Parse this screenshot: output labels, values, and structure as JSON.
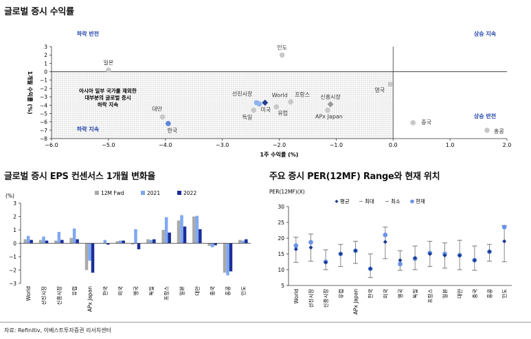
{
  "titles": {
    "scatter": "글로벌 증시 수익률",
    "eps": "글로벌 증시 EPS 컨센서스 1개월 변화율",
    "per": "주요 증시 PER(12MF) Range와 현재 위치"
  },
  "source": "자료: Refinitiv, 이베스트투자증권 리서치센터",
  "chart_data": [
    {
      "type": "scatter",
      "title": "글로벌 증시 수익률",
      "xlabel": "1주 수익률 (%)",
      "ylabel": "1개월 수익률 (%)",
      "xlim": [
        -6.0,
        2.0
      ],
      "ylim": [
        -8,
        3
      ],
      "x_ticks": [
        "−6.0",
        "−5.0",
        "−4.0",
        "−3.0",
        "−2.0",
        "−1.0",
        "0.0",
        "1.0",
        "2.0"
      ],
      "y_ticks": [
        "3",
        "2",
        "1",
        "0",
        "−1",
        "−2",
        "−3",
        "−4",
        "−5",
        "−6",
        "−7",
        "−8"
      ],
      "quadrant_labels": {
        "top_left": "하락 반전",
        "top_right": "상승 지속",
        "bottom_left": "하락 지속",
        "bottom_right": "상승 반전"
      },
      "annotation": [
        "아시아 일부 국가를 제외한",
        "대부분의 글로벌 증시",
        "하락 지속"
      ],
      "colors": {
        "gray": "#c8c8c8",
        "light_blue": "#8fb4ee",
        "blue": "#5b86d9",
        "navy": "#1f3f8f",
        "dark_gray": "#999999",
        "quadrant_text": "#2244aa"
      },
      "points": [
        {
          "name": "일본",
          "x": -5.0,
          "y": 0.2,
          "color": "gray"
        },
        {
          "name": "인도",
          "x": -1.95,
          "y": 2.0,
          "color": "gray"
        },
        {
          "name": "영국",
          "x": -0.05,
          "y": -1.5,
          "color": "gray"
        },
        {
          "name": "선진시장",
          "x": -2.4,
          "y": -3.7,
          "color": "light_blue"
        },
        {
          "name": "World",
          "x": -2.25,
          "y": -3.7,
          "color": "navy"
        },
        {
          "name": "미국",
          "x": -2.35,
          "y": -3.85,
          "color": "light_blue"
        },
        {
          "name": "프랑스",
          "x": -1.8,
          "y": -3.6,
          "color": "gray"
        },
        {
          "name": "신흥시장",
          "x": -1.1,
          "y": -3.9,
          "color": "dark_gray"
        },
        {
          "name": "유럽",
          "x": -2.05,
          "y": -4.2,
          "color": "gray"
        },
        {
          "name": "독일",
          "x": -2.45,
          "y": -4.6,
          "color": "gray"
        },
        {
          "name": "APx Japan",
          "x": -1.15,
          "y": -4.6,
          "color": "gray"
        },
        {
          "name": "대만",
          "x": -4.05,
          "y": -5.4,
          "color": "gray"
        },
        {
          "name": "한국",
          "x": -3.95,
          "y": -6.2,
          "color": "blue"
        },
        {
          "name": "중국",
          "x": 0.35,
          "y": -6.1,
          "color": "gray"
        },
        {
          "name": "홍콩",
          "x": 1.65,
          "y": -7.0,
          "color": "gray"
        }
      ]
    },
    {
      "type": "bar",
      "title": "글로벌 증시 EPS 컨센서스 1개월 변화율",
      "ylabel": "(%)",
      "ylim": [
        -3,
        3
      ],
      "y_ticks": [
        "3",
        "2",
        "1",
        "0",
        "−1",
        "−2",
        "−3"
      ],
      "categories": [
        "World",
        "선진시장",
        "신흥시장",
        "유럽",
        "APx Japan",
        "한국",
        "미국",
        "영국",
        "독일",
        "프랑스",
        "일본",
        "대만",
        "중국",
        "홍콩",
        "인도"
      ],
      "series": [
        {
          "name": "12M Fwd",
          "color": "#a9a9a9",
          "values": [
            0.3,
            0.25,
            0.2,
            0.4,
            -2.0,
            0.0,
            0.15,
            -0.1,
            0.3,
            1.0,
            1.7,
            2.0,
            -0.2,
            -2.2,
            0.25
          ]
        },
        {
          "name": "2021",
          "color": "#7fa8f0",
          "values": [
            0.55,
            0.5,
            0.85,
            1.1,
            -1.3,
            0.25,
            0.2,
            1.05,
            0.25,
            1.95,
            2.1,
            2.05,
            -0.3,
            -2.4,
            0.2
          ]
        },
        {
          "name": "2022",
          "color": "#1c2e9a",
          "values": [
            0.25,
            0.2,
            0.25,
            0.3,
            -2.2,
            -0.1,
            0.2,
            -0.45,
            0.3,
            0.8,
            1.25,
            1.05,
            -0.15,
            -2.1,
            0.3
          ]
        }
      ]
    },
    {
      "type": "scatter",
      "title": "주요 증시 PER(12MF) Range와 현재 위치",
      "ylabel": "PER(12MF)(X)",
      "ylim": [
        5,
        30
      ],
      "y_ticks": [
        "30",
        "25",
        "20",
        "15",
        "10",
        "5"
      ],
      "categories": [
        "World",
        "선진시장",
        "신흥시장",
        "유럽",
        "APx Japan",
        "한국",
        "미국",
        "영국",
        "독일",
        "프랑스",
        "일본",
        "대만",
        "중국",
        "홍콩",
        "인도"
      ],
      "legend": [
        "평균",
        "최대",
        "최소",
        "현재"
      ],
      "colors": {
        "avg": "#1a3a8f",
        "range": "#888888",
        "current": "#6b93e8"
      },
      "avg": [
        16.5,
        17.0,
        12.3,
        15.0,
        16.0,
        10.3,
        18.8,
        13.0,
        13.7,
        15.0,
        14.5,
        14.5,
        13.0,
        15.7,
        19.0
      ],
      "max": [
        20.3,
        21.3,
        16.3,
        18.0,
        19.0,
        15.0,
        23.5,
        16.0,
        17.5,
        19.0,
        18.5,
        19.3,
        17.5,
        18.0,
        24.0
      ],
      "min": [
        12.3,
        12.7,
        10.0,
        11.0,
        12.0,
        7.5,
        13.5,
        9.8,
        10.0,
        11.0,
        10.5,
        10.0,
        9.8,
        12.7,
        12.5
      ],
      "current": [
        17.6,
        18.7,
        12.5,
        15.0,
        16.0,
        10.3,
        21.0,
        11.8,
        13.5,
        15.3,
        15.0,
        14.6,
        13.0,
        15.7,
        23.5
      ]
    }
  ]
}
